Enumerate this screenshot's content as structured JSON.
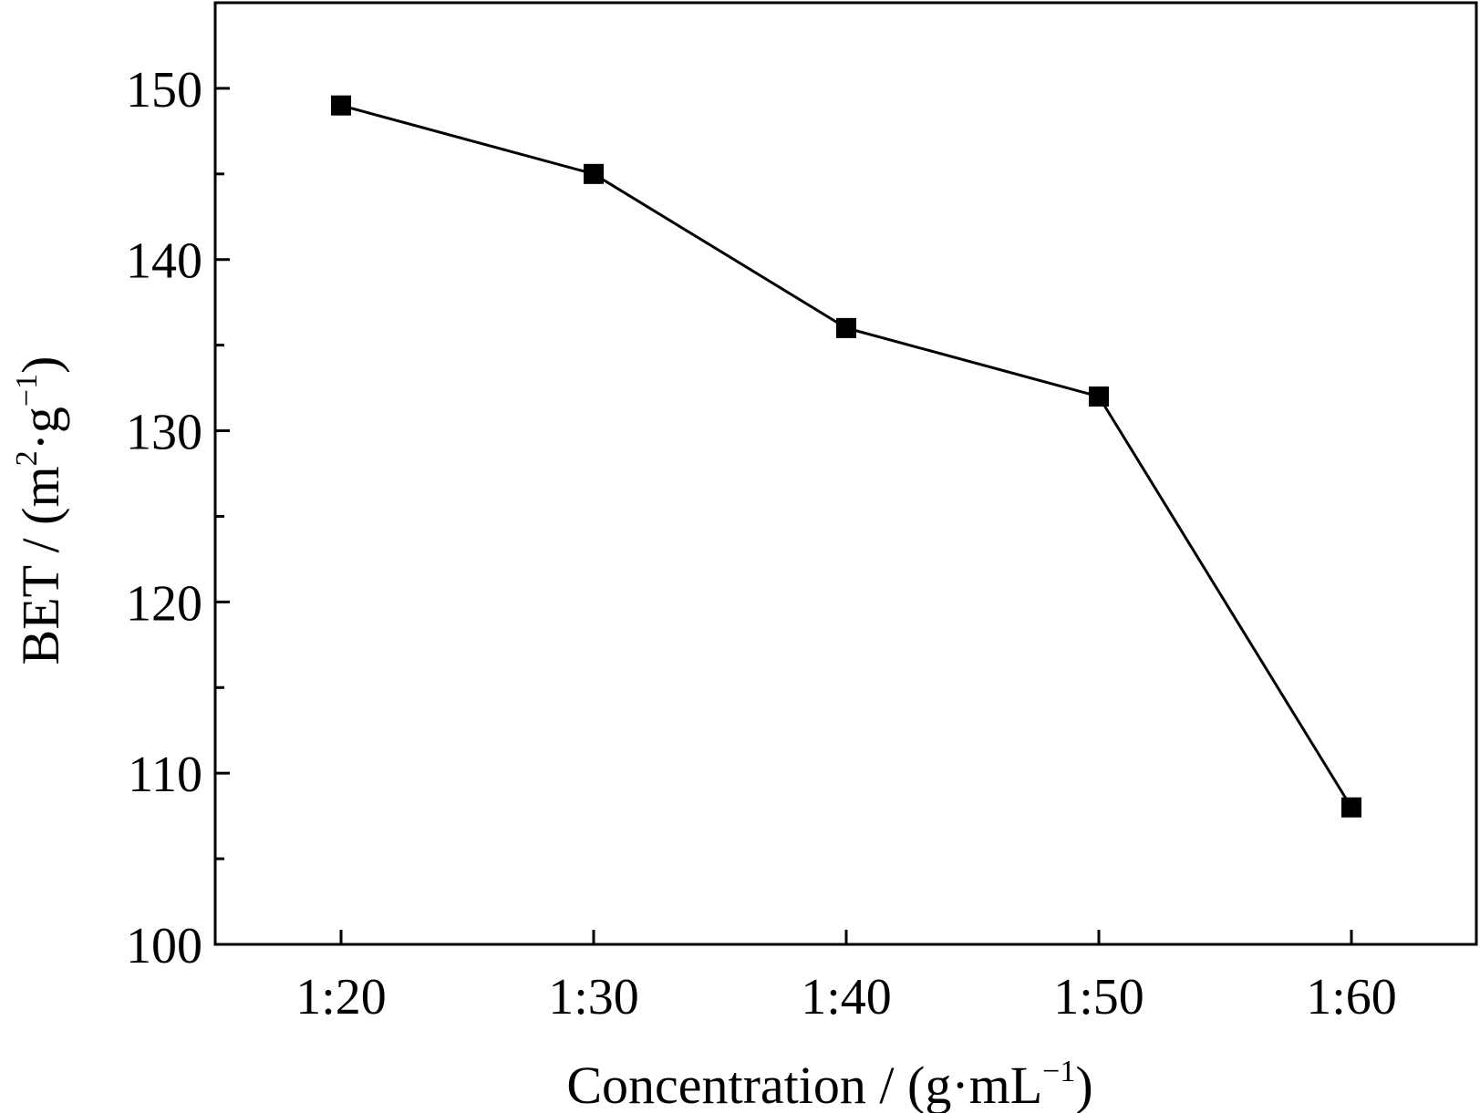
{
  "chart_data": {
    "type": "line",
    "title": "",
    "categories": [
      "1:20",
      "1:30",
      "1:40",
      "1:50",
      "1:60"
    ],
    "series": [
      {
        "name": "BET",
        "values": [
          149,
          145,
          136,
          132,
          108
        ],
        "marker": "square"
      }
    ],
    "xlabel": {
      "main": "Concentration / (g·mL",
      "sup": "−1",
      "close": ")"
    },
    "ylabel": {
      "part1": "BET / (m",
      "sup1": "2",
      "part2": "·g",
      "sup2": "−1",
      "close": ")"
    },
    "ylim": [
      100,
      155
    ],
    "yticks": [
      100,
      110,
      120,
      130,
      140,
      150
    ],
    "yminor_ticks": [
      105,
      115,
      125,
      135,
      145
    ],
    "grid": false,
    "legend": "none",
    "colors": {
      "line": "#000000",
      "marker": "#000000",
      "axis": "#000000"
    }
  }
}
